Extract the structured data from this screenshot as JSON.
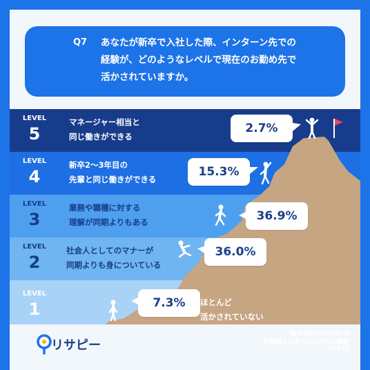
{
  "question": {
    "label": "Q7",
    "lines": [
      "あなたが新卒で入社した際、インターン先での",
      "経験が、どのようなレベルで現在のお勤め先で",
      "活かされていますか。"
    ]
  },
  "chart_data": {
    "type": "bar",
    "categories": [
      "LEVEL 5",
      "LEVEL 4",
      "LEVEL 3",
      "LEVEL 2",
      "LEVEL 1"
    ],
    "levels": [
      {
        "word": "LEVEL",
        "num": "5",
        "desc": [
          "マネージャー相当と",
          "同じ働きができる"
        ],
        "value": 2.7,
        "label": "2.7%"
      },
      {
        "word": "LEVEL",
        "num": "4",
        "desc": [
          "新卒2～3年目の",
          "先輩と同じ働きができる"
        ],
        "value": 15.3,
        "label": "15.3%"
      },
      {
        "word": "LEVEL",
        "num": "3",
        "desc": [
          "業務や職種に対する",
          "理解が同期よりもある"
        ],
        "value": 36.9,
        "label": "36.9%"
      },
      {
        "word": "LEVEL",
        "num": "2",
        "desc": [
          "社会人としてのマナーが",
          "同期よりも身についている"
        ],
        "value": 36.0,
        "label": "36.0%"
      },
      {
        "word": "LEVEL",
        "num": "1",
        "desc": [
          "ほとんど",
          "活かされていない"
        ],
        "value": 7.3,
        "label": "7.3%"
      }
    ],
    "unit": "%"
  },
  "colors": {
    "frame": "#1d73e8",
    "band_5": "#173c8b",
    "band_4": "#1d6fe3",
    "band_3": "#4ea0ef",
    "band_2": "#6fb5f2",
    "band_1": "#a9d2f7",
    "mountain": "#c6a582",
    "bubble_text": "#1b3f84",
    "flag": "#e8475f"
  },
  "icons": [
    "person-celebrating-icon",
    "person-waving-icon",
    "person-walking-icon",
    "person-climbing-icon",
    "person-standing-icon",
    "flag-icon",
    "risapi-logo-icon"
  ],
  "footer": {
    "logo": "リサピー",
    "credit_lines": [
      "株式会社IDEATECH",
      "企画職インターンレベル別調査",
      "n=111"
    ]
  }
}
